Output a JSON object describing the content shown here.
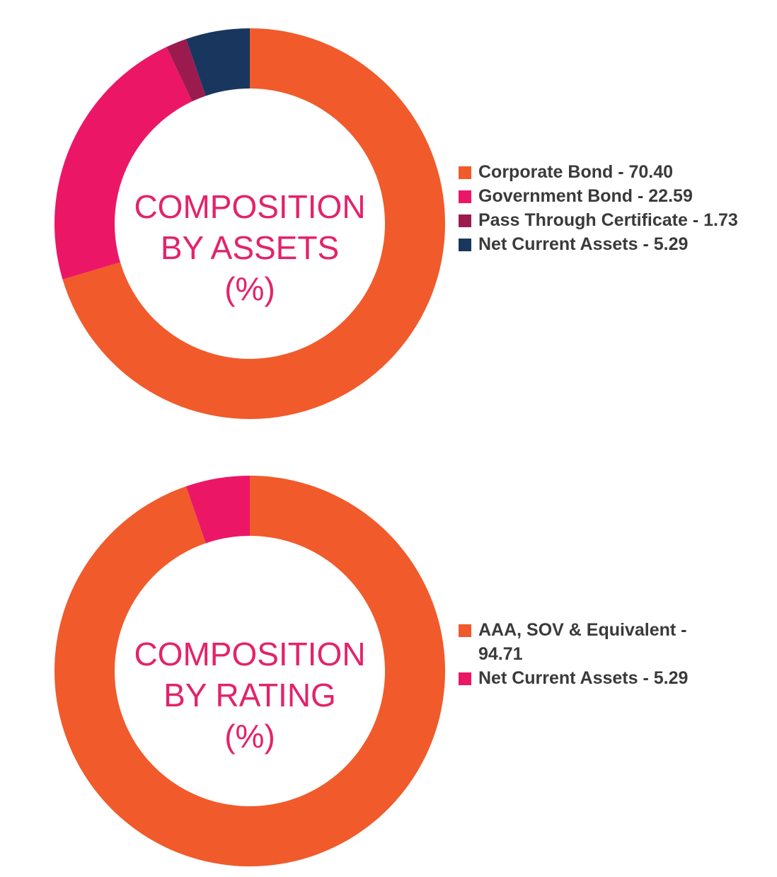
{
  "chart_data": [
    {
      "type": "pie",
      "title_lines": [
        "COMPOSITION",
        "BY ASSETS",
        "(%)"
      ],
      "categories": [
        "Corporate Bond",
        "Government Bond",
        "Pass Through Certificate",
        "Net Current Assets"
      ],
      "values": [
        70.4,
        22.59,
        1.73,
        5.29
      ],
      "colors": [
        "#f15a2b",
        "#ec1667",
        "#9c1b4f",
        "#19365e"
      ],
      "legend": [
        {
          "text": "Corporate Bond - 70.40"
        },
        {
          "text": "Government Bond - 22.59"
        },
        {
          "text": "Pass Through Certificate - 1.73"
        },
        {
          "text": "Net Current Assets - 5.29"
        }
      ],
      "legend_position": "right"
    },
    {
      "type": "pie",
      "title_lines": [
        "COMPOSITION",
        "BY RATING",
        "(%)"
      ],
      "categories": [
        "AAA, SOV & Equivalent",
        "Net Current Assets"
      ],
      "values": [
        94.71,
        5.29
      ],
      "colors": [
        "#f15a2b",
        "#ec1667"
      ],
      "legend": [
        {
          "text_lines": [
            "AAA, SOV & Equivalent -",
            "94.71"
          ]
        },
        {
          "text": "Net Current Assets - 5.29"
        }
      ],
      "legend_position": "right"
    }
  ]
}
